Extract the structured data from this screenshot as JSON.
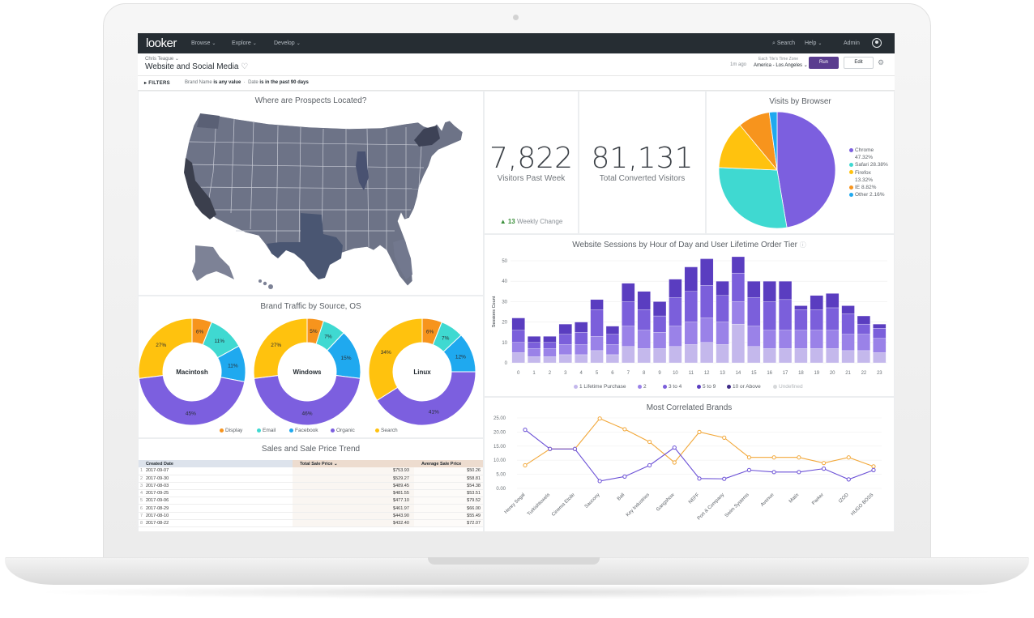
{
  "nav": {
    "logo": "looker",
    "menus": [
      "Browse",
      "Explore",
      "Develop"
    ],
    "search": "Search",
    "help": "Help",
    "admin": "Admin"
  },
  "header": {
    "owner": "Chris Teague",
    "title": "Website and Social Media",
    "updated": "1m ago",
    "tz_label": "Each Tile's Time Zone",
    "tz_value": "America - Los Angeles",
    "run_label": "Run",
    "edit_label": "Edit"
  },
  "filters": {
    "label": "FILTERS",
    "brand_prefix": "Brand Name",
    "brand_value": "is any value",
    "date_prefix": "Date",
    "date_value": "is in the past 90 days"
  },
  "tiles": {
    "map": {
      "title": "Where are Prospects Located?"
    },
    "visitors": {
      "value": "7,822",
      "label": "Visitors Past Week",
      "change_value": "13",
      "change_label": "Weekly Change"
    },
    "converted": {
      "value": "81,131",
      "label": "Total Converted Visitors"
    },
    "browser": {
      "title": "Visits by Browser"
    },
    "brand": {
      "title": "Brand Traffic by Source, OS"
    },
    "sessions": {
      "title": "Website Sessions by Hour of Day and User Lifetime Order Tier"
    },
    "sales": {
      "title": "Sales and Sale Price Trend"
    },
    "brands": {
      "title": "Most Correlated Brands"
    }
  },
  "colors": {
    "purple": "#7c5fdf",
    "teal": "#3fd9d1",
    "blue": "#1fa9ef",
    "yellow": "#ffc20e",
    "orange": "#f7941d",
    "navbar": "#262d33",
    "run_button": "#5a3d8f"
  },
  "chart_data": [
    {
      "type": "pie",
      "title": "Visits by Browser",
      "legend": [
        {
          "name": "Chrome",
          "value": 47.32,
          "label": "47.32%",
          "color": "#7c5fdf"
        },
        {
          "name": "Safari",
          "value": 28.38,
          "label": "28.38%",
          "color": "#3fd9d1"
        },
        {
          "name": "Firefox",
          "value": 13.32,
          "label": "13.32%",
          "color": "#ffc20e"
        },
        {
          "name": "IE",
          "value": 8.82,
          "label": "8.82%",
          "color": "#f7941d"
        },
        {
          "name": "Other",
          "value": 2.16,
          "label": "2.16%",
          "color": "#1fa9ef"
        }
      ],
      "legend_placement": "right"
    },
    {
      "type": "pie",
      "title": "Brand Traffic by Source, OS",
      "legend": [
        {
          "name": "Display",
          "color": "#f7941d"
        },
        {
          "name": "Email",
          "color": "#3fd9d1"
        },
        {
          "name": "Facebook",
          "color": "#1fa9ef"
        },
        {
          "name": "Organic",
          "color": "#7c5fdf"
        },
        {
          "name": "Search",
          "color": "#ffc20e"
        }
      ],
      "charts": [
        {
          "name": "Macintosh",
          "values": [
            6,
            11,
            11,
            45,
            27
          ],
          "labels": [
            "6%",
            "11%",
            "11%",
            "45%",
            "27%"
          ]
        },
        {
          "name": "Windows",
          "values": [
            5,
            7,
            15,
            46,
            27
          ],
          "labels": [
            "5%",
            "7%",
            "15%",
            "46%",
            "27%"
          ]
        },
        {
          "name": "Linux",
          "values": [
            6,
            7,
            12,
            41,
            34
          ],
          "labels": [
            "6%",
            "7%",
            "12%",
            "41%",
            "34%"
          ]
        }
      ],
      "legend_placement": "bottom"
    },
    {
      "type": "bar",
      "stacked": true,
      "title": "Website Sessions by Hour of Day and User Lifetime Order Tier",
      "ylabel": "Sessions Count",
      "ylim": [
        0,
        50
      ],
      "yticks": [
        0,
        10,
        20,
        30,
        40,
        50
      ],
      "categories": [
        "0",
        "1",
        "2",
        "3",
        "4",
        "5",
        "6",
        "7",
        "8",
        "9",
        "10",
        "11",
        "12",
        "13",
        "14",
        "15",
        "16",
        "17",
        "18",
        "19",
        "20",
        "21",
        "22",
        "23"
      ],
      "series": [
        {
          "name": "1 Lifetime Purchase",
          "color": "#c4b8ec",
          "values": [
            5,
            3,
            3,
            4,
            4,
            6,
            4,
            8,
            7,
            7,
            8,
            9,
            10,
            9,
            19,
            8,
            7,
            7,
            7,
            7,
            7,
            6,
            6,
            5
          ]
        },
        {
          "name": "2",
          "color": "#9a82e8",
          "values": [
            5,
            4,
            4,
            5,
            5,
            7,
            5,
            10,
            9,
            8,
            10,
            11,
            12,
            11,
            11,
            10,
            9,
            9,
            9,
            9,
            9,
            8,
            8,
            7
          ]
        },
        {
          "name": "3 to 4",
          "color": "#7b5fdb",
          "values": [
            6,
            3,
            3,
            5,
            6,
            13,
            5,
            12,
            10,
            8,
            14,
            15,
            16,
            13,
            14,
            14,
            14,
            15,
            10,
            10,
            11,
            10,
            5,
            5
          ]
        },
        {
          "name": "5 to 9",
          "color": "#5a3dc0",
          "values": [
            6,
            3,
            3,
            5,
            5,
            5,
            4,
            9,
            9,
            7,
            9,
            12,
            13,
            7,
            8,
            8,
            10,
            9,
            2,
            7,
            7,
            4,
            4,
            2
          ]
        },
        {
          "name": "10 or Above",
          "color": "#3e2a85",
          "values": [
            0,
            0,
            0,
            0,
            0,
            0,
            0,
            0,
            0,
            0,
            0,
            0,
            0,
            0,
            0,
            0,
            0,
            0,
            0,
            0,
            0,
            0,
            0,
            0
          ]
        },
        {
          "name": "Undefined",
          "color": "#d6d8da",
          "values": [
            0,
            0,
            0,
            0,
            0,
            0,
            0,
            0,
            0,
            0,
            0,
            0,
            0,
            0,
            0,
            0,
            0,
            0,
            0,
            0,
            0,
            0,
            0,
            0
          ]
        }
      ],
      "legend_placement": "bottom"
    },
    {
      "type": "table",
      "title": "Sales and Sale Price Trend",
      "columns": [
        "Created Date",
        "Total Sale Price",
        "Average Sale Price"
      ],
      "rows": [
        [
          "2017-09-07",
          "$753.93",
          "$50.26"
        ],
        [
          "2017-09-30",
          "$529.27",
          "$58.81"
        ],
        [
          "2017-08-03",
          "$489.45",
          "$54.38"
        ],
        [
          "2017-09-25",
          "$481.55",
          "$53.51"
        ],
        [
          "2017-09-06",
          "$477.10",
          "$79.52"
        ],
        [
          "2017-08-29",
          "$461.97",
          "$66.00"
        ],
        [
          "2017-08-10",
          "$443.90",
          "$55.49"
        ],
        [
          "2017-08-22",
          "$432.40",
          "$72.07"
        ]
      ]
    },
    {
      "type": "line",
      "title": "Most Correlated Brands",
      "categories": [
        "Henry Segal",
        "Turkishtowels",
        "Cinema Etoile",
        "Saucony",
        "Bali",
        "Key Industries",
        "Gangshow",
        "NEFF",
        "Port & Company",
        "Swim Systems",
        "Avenue",
        "Matix",
        "Parker",
        "IZOD",
        "HUGO BOSS"
      ],
      "ylim": [
        0,
        25
      ],
      "yticks": [
        "0.00",
        "5.00",
        "10.00",
        "15.00",
        "20.00",
        "25.00"
      ],
      "series": [
        {
          "color": "#f2a83a",
          "values": [
            8.2,
            14.0,
            14.0,
            24.8,
            21.0,
            16.5,
            9.2,
            20.0,
            18.0,
            11.0,
            11.0,
            11.0,
            9.0,
            11.0,
            7.8
          ]
        },
        {
          "color": "#6a4fd6",
          "values": [
            20.8,
            14.0,
            14.0,
            2.6,
            4.2,
            8.2,
            14.5,
            3.5,
            3.4,
            6.5,
            5.8,
            5.8,
            7.0,
            3.2,
            6.5
          ]
        }
      ]
    }
  ]
}
